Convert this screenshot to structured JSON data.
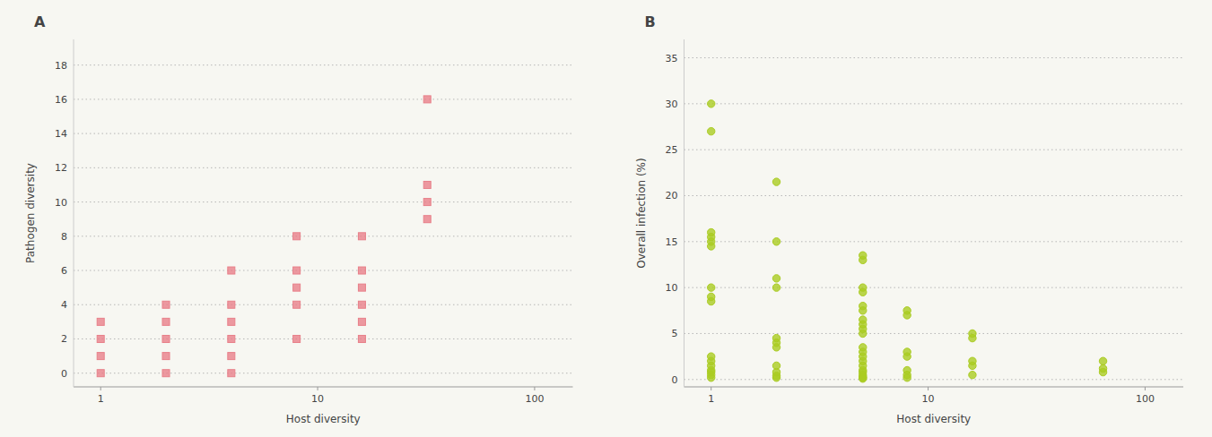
{
  "chart_data": [
    {
      "type": "scatter",
      "title": "A",
      "x_label": "Host diversity",
      "y_label": "Pathogen diversity",
      "log": "x",
      "grid": true,
      "marker": "square",
      "color": "#e8808a",
      "xlim": [
        0.75,
        150
      ],
      "xticks": [
        1,
        10,
        100
      ],
      "ylim": [
        -0.8,
        19.5
      ],
      "yticks": [
        0,
        2,
        4,
        6,
        8,
        10,
        12,
        14,
        16,
        18
      ],
      "x": [
        1,
        1,
        1,
        1,
        2,
        2,
        2,
        2,
        2,
        4,
        4,
        4,
        4,
        4,
        4,
        8,
        8,
        8,
        8,
        8,
        16,
        16,
        16,
        16,
        16,
        16,
        32,
        32,
        32,
        32
      ],
      "values": [
        0,
        1,
        2,
        3,
        0,
        1,
        2,
        3,
        4,
        0,
        1,
        2,
        3,
        4,
        6,
        2,
        4,
        5,
        6,
        8,
        2,
        3,
        4,
        5,
        6,
        8,
        9,
        10,
        11,
        16
      ]
    },
    {
      "type": "scatter",
      "title": "B",
      "x_label": "Host diversity",
      "y_label": "Overall infection (%)",
      "log": "x",
      "grid": true,
      "marker": "circle",
      "color": "#aacc22",
      "xlim": [
        0.75,
        150
      ],
      "xticks": [
        1,
        10,
        100
      ],
      "ylim": [
        -0.8,
        37
      ],
      "yticks": [
        0,
        5,
        10,
        15,
        20,
        25,
        30,
        35
      ],
      "x": [
        1,
        1,
        1,
        1,
        1,
        1,
        1,
        1,
        1,
        1,
        1,
        1,
        1,
        1,
        1,
        1,
        2,
        2,
        2,
        2,
        2,
        2,
        2,
        2,
        2,
        2,
        2,
        5,
        5,
        5,
        5,
        5,
        5,
        5,
        5,
        5,
        5,
        5,
        5,
        5,
        5,
        5,
        5,
        5,
        5,
        5,
        5,
        5,
        8,
        8,
        8,
        8,
        8,
        8,
        8,
        16,
        16,
        16,
        16,
        16,
        64,
        64,
        64
      ],
      "values": [
        0.2,
        0.5,
        0.8,
        1.0,
        1.5,
        2.0,
        2.5,
        8.5,
        9.0,
        10.0,
        14.5,
        15.0,
        15.5,
        16.0,
        27.0,
        30.0,
        0.2,
        0.4,
        0.8,
        1.5,
        3.5,
        4.0,
        4.5,
        10.0,
        11.0,
        15.0,
        21.5,
        0.1,
        0.2,
        0.3,
        0.5,
        0.8,
        1.0,
        1.5,
        2.0,
        2.5,
        3.0,
        3.5,
        5.0,
        5.5,
        6.0,
        6.5,
        7.5,
        8.0,
        9.5,
        10.0,
        13.0,
        13.5,
        0.2,
        0.5,
        1.0,
        2.5,
        3.0,
        7.0,
        7.5,
        0.5,
        1.5,
        2.0,
        4.5,
        5.0,
        0.8,
        1.2,
        2.0
      ]
    }
  ]
}
